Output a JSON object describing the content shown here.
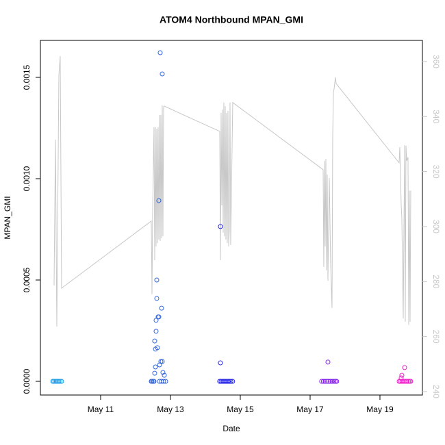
{
  "chart_data": {
    "type": "scatter",
    "title": "ATOM4 Northbound MPAN_GMI",
    "xlabel": "Date",
    "ylabel": "MPAN_GMI",
    "xlim": [
      9.275,
      20.216
    ],
    "xticks": [
      {
        "value": 11,
        "label": "May 11"
      },
      {
        "value": 13,
        "label": "May 13"
      },
      {
        "value": 15,
        "label": "May 15"
      },
      {
        "value": 17,
        "label": "May 17"
      },
      {
        "value": 19,
        "label": "May 19"
      }
    ],
    "ylim": [
      -6.76e-05,
      0.0016824
    ],
    "yticks": [
      {
        "value": 0,
        "label": "0.0000"
      },
      {
        "value": 0.0005,
        "label": "0.0005"
      },
      {
        "value": 0.001,
        "label": "0.0010"
      },
      {
        "value": 0.0015,
        "label": "0.0015"
      }
    ],
    "y2lim": [
      238.75,
      367.7
    ],
    "y2ticks": [
      240,
      260,
      280,
      300,
      320,
      340,
      360
    ],
    "y2color": "#c8c8c8",
    "series": [
      {
        "mode": "points",
        "color": "#1fa0ea",
        "x": [
          9.63,
          9.66,
          9.7,
          9.73,
          9.77,
          9.8,
          9.84,
          9.88
        ],
        "values": [
          0,
          0,
          0,
          0,
          0,
          0,
          0,
          0
        ]
      },
      {
        "mode": "points",
        "color": "#3366dd",
        "x": [
          12.706,
          12.765,
          12.667,
          12.608,
          12.608,
          12.745,
          12.647,
          12.667,
          12.588,
          12.588,
          12.549,
          12.627,
          12.569,
          12.725,
          12.765,
          12.686,
          12.569,
          12.784,
          12.824,
          12.549,
          12.451,
          12.471,
          12.51,
          12.529,
          12.686,
          12.745,
          12.804,
          12.863
        ],
        "values": [
          0.0016216,
          0.0015169,
          0.000892,
          0.0005,
          0.000409,
          0.000361,
          0.000318,
          0.000318,
          0.000301,
          0.000247,
          0.000199,
          0.000166,
          0.000159,
          9.8e-05,
          9.8e-05,
          8.1e-05,
          7.1e-05,
          4.4e-05,
          3e-05,
          4e-05,
          0,
          0,
          0,
          0,
          0,
          0,
          0,
          0
        ]
      },
      {
        "mode": "points",
        "color": "#2424e6",
        "x": [
          14.431,
          14.431,
          14.41,
          14.45,
          14.49,
          14.53,
          14.57,
          14.61,
          14.65,
          14.69,
          14.73,
          14.78
        ],
        "values": [
          0.000764,
          9.1e-05,
          0,
          0,
          0,
          0,
          0,
          0,
          0,
          0,
          0,
          0
        ]
      },
      {
        "mode": "points",
        "color": "#8822ee",
        "x": [
          17.51,
          17.33,
          17.38,
          17.43,
          17.48,
          17.53,
          17.58,
          17.63,
          17.68,
          17.72,
          17.76
        ],
        "values": [
          9.5e-05,
          0,
          0,
          0,
          0,
          0,
          0,
          0,
          0,
          0,
          0
        ]
      },
      {
        "mode": "points",
        "color": "#ee22cc",
        "x": [
          19.706,
          19.627,
          19.608,
          19.55,
          19.59,
          19.63,
          19.67,
          19.71,
          19.75,
          19.78,
          19.82,
          19.86,
          19.88
        ],
        "values": [
          6.8e-05,
          3e-05,
          1.7e-05,
          0,
          0,
          0,
          0,
          0,
          0,
          0,
          0,
          0,
          0
        ]
      },
      {
        "mode": "line",
        "axis": "y2",
        "color": "#c8c8c8",
        "x": [
          9.667,
          9.706,
          9.745,
          9.804,
          9.843,
          9.882,
          12.451,
          12.471,
          12.49,
          12.529,
          12.549,
          12.569,
          12.588,
          12.608,
          12.627,
          12.647,
          12.667,
          12.686,
          12.706,
          12.725,
          12.745,
          12.765,
          12.784,
          12.804,
          12.824,
          14.412,
          14.431,
          14.451,
          14.471,
          14.49,
          14.51,
          14.529,
          14.549,
          14.569,
          14.588,
          14.608,
          14.627,
          14.647,
          14.667,
          14.686,
          14.706,
          14.725,
          14.784,
          17.373,
          17.392,
          17.412,
          17.431,
          17.451,
          17.471,
          17.49,
          17.51,
          17.549,
          17.588,
          17.627,
          17.647,
          17.667,
          17.686,
          17.725,
          17.745,
          19.549,
          19.569,
          19.608,
          19.627,
          19.667,
          19.706,
          19.725,
          19.745,
          19.765,
          19.804,
          19.824,
          19.843,
          19.863,
          19.882
        ],
        "values": [
          278.6,
          331.6,
          263.6,
          355,
          362,
          277.6,
          302,
          275.4,
          305.2,
          336.1,
          287.8,
          336.1,
          292.8,
          335.6,
          294,
          336.1,
          295.3,
          340.6,
          294.8,
          340.6,
          295.8,
          344.1,
          296.5,
          343.6,
          343.8,
          334.6,
          287.8,
          341.3,
          307.7,
          342.6,
          297.8,
          345.1,
          296.5,
          343.8,
          295.3,
          341.3,
          294,
          342.1,
          292.8,
          299,
          345.1,
          293.3,
          345.1,
          320.7,
          285.3,
          323.9,
          292.8,
          324.6,
          284.1,
          318.9,
          280.3,
          317.7,
          286.1,
          270.4,
          332.6,
          348.8,
          350,
          354.3,
          352,
          323.2,
          328.9,
          307.7,
          303.2,
          266.6,
          329.6,
          265.4,
          329.4,
          323.9,
          325.2,
          264.2,
          313.1,
          265.4,
          313.1
        ]
      }
    ]
  }
}
